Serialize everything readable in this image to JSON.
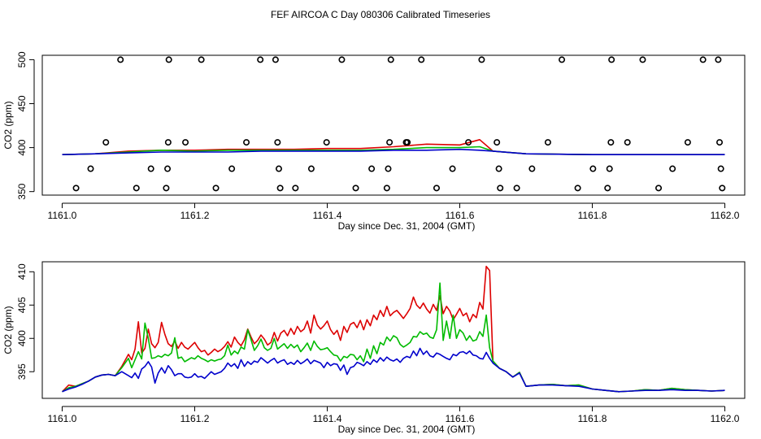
{
  "figure": {
    "title": "FEF AIRCOA C  Day 080306  Calibrated Timeseries"
  },
  "colors": {
    "red": "#dd0000",
    "green": "#00bb00",
    "blue": "#0000cc",
    "axis": "#000000"
  },
  "chart_data": [
    {
      "type": "line+scatter",
      "title": "",
      "xlabel": "Day since Dec. 31, 2004 (GMT)",
      "ylabel": "CO2 (ppm)",
      "xlim": [
        1160.97,
        1162.03
      ],
      "ylim": [
        346,
        505
      ],
      "xticks": [
        1161.0,
        1161.2,
        1161.4,
        1161.6,
        1161.8,
        1162.0
      ],
      "xtick_labels": [
        "1161.0",
        "1161.2",
        "1161.4",
        "1161.6",
        "1161.8",
        "1162.0"
      ],
      "yticks": [
        350,
        400,
        450,
        500
      ],
      "ytick_labels": [
        "350",
        "400",
        "450",
        "500"
      ],
      "scatter": {
        "name": "calibration points",
        "x": [
          1161.021,
          1161.043,
          1161.066,
          1161.088,
          1161.112,
          1161.134,
          1161.157,
          1161.159,
          1161.16,
          1161.161,
          1161.186,
          1161.21,
          1161.232,
          1161.256,
          1161.278,
          1161.299,
          1161.322,
          1161.325,
          1161.327,
          1161.329,
          1161.352,
          1161.376,
          1161.399,
          1161.422,
          1161.443,
          1161.467,
          1161.49,
          1161.492,
          1161.494,
          1161.496,
          1161.519,
          1161.521,
          1161.542,
          1161.565,
          1161.589,
          1161.613,
          1161.633,
          1161.656,
          1161.659,
          1161.661,
          1161.686,
          1161.709,
          1161.733,
          1161.754,
          1161.778,
          1161.801,
          1161.823,
          1161.826,
          1161.828,
          1161.829,
          1161.853,
          1161.876,
          1161.9,
          1161.921,
          1161.944,
          1161.967,
          1161.99,
          1161.992,
          1161.994,
          1161.996
        ],
        "y": [
          354,
          376,
          406,
          500,
          354,
          376,
          354,
          376,
          406,
          500,
          406,
          500,
          354,
          376,
          406,
          500,
          500,
          406,
          376,
          354,
          354,
          376,
          406,
          500,
          354,
          376,
          354,
          376,
          406,
          500,
          406,
          406,
          500,
          354,
          376,
          406,
          500,
          406,
          376,
          354,
          354,
          376,
          406,
          500,
          354,
          376,
          354,
          376,
          406,
          500,
          406,
          500,
          354,
          376,
          406,
          500,
          500,
          406,
          376,
          354
        ]
      },
      "x": [
        1161.0,
        1161.05,
        1161.1,
        1161.15,
        1161.2,
        1161.25,
        1161.3,
        1161.35,
        1161.4,
        1161.45,
        1161.5,
        1161.55,
        1161.6,
        1161.63,
        1161.65,
        1161.7,
        1161.8,
        1161.9,
        1162.0
      ],
      "series": [
        {
          "name": "red",
          "color": "red",
          "values": [
            392,
            393,
            396,
            397,
            397,
            398,
            398,
            398,
            399,
            399,
            401,
            404,
            403,
            409,
            396,
            393,
            392,
            392,
            392
          ]
        },
        {
          "name": "green",
          "color": "green",
          "values": [
            392,
            393,
            395,
            397,
            396,
            397,
            397,
            397,
            397,
            397,
            398,
            400,
            400,
            401,
            396,
            393,
            392,
            392,
            392
          ]
        },
        {
          "name": "blue",
          "color": "blue",
          "values": [
            392,
            393,
            394,
            395,
            395,
            395,
            396,
            396,
            396,
            396,
            397,
            397,
            398,
            397,
            396,
            393,
            392,
            392,
            392
          ]
        }
      ]
    },
    {
      "type": "line",
      "title": "",
      "xlabel": "Day since Dec. 31, 2004 (GMT)",
      "ylabel": "CO2 (ppm)",
      "xlim": [
        1160.97,
        1162.03
      ],
      "ylim": [
        391.0,
        411.5
      ],
      "xticks": [
        1161.0,
        1161.2,
        1161.4,
        1161.6,
        1161.8,
        1162.0
      ],
      "xtick_labels": [
        "1161.0",
        "1161.2",
        "1161.4",
        "1161.6",
        "1161.8",
        "1162.0"
      ],
      "yticks": [
        395,
        400,
        405,
        410
      ],
      "ytick_labels": [
        "395",
        "400",
        "405",
        "410"
      ],
      "x": [
        1161.0,
        1161.01,
        1161.02,
        1161.03,
        1161.04,
        1161.05,
        1161.06,
        1161.07,
        1161.08,
        1161.09,
        1161.1,
        1161.105,
        1161.11,
        1161.115,
        1161.12,
        1161.125,
        1161.13,
        1161.135,
        1161.14,
        1161.145,
        1161.15,
        1161.155,
        1161.16,
        1161.165,
        1161.17,
        1161.175,
        1161.18,
        1161.185,
        1161.19,
        1161.195,
        1161.2,
        1161.205,
        1161.21,
        1161.215,
        1161.22,
        1161.225,
        1161.23,
        1161.235,
        1161.24,
        1161.245,
        1161.25,
        1161.255,
        1161.26,
        1161.265,
        1161.27,
        1161.275,
        1161.28,
        1161.285,
        1161.29,
        1161.295,
        1161.3,
        1161.305,
        1161.31,
        1161.315,
        1161.32,
        1161.325,
        1161.33,
        1161.335,
        1161.34,
        1161.345,
        1161.35,
        1161.355,
        1161.36,
        1161.365,
        1161.37,
        1161.375,
        1161.38,
        1161.385,
        1161.39,
        1161.395,
        1161.4,
        1161.405,
        1161.41,
        1161.415,
        1161.42,
        1161.425,
        1161.43,
        1161.435,
        1161.44,
        1161.445,
        1161.45,
        1161.455,
        1161.46,
        1161.465,
        1161.47,
        1161.475,
        1161.48,
        1161.485,
        1161.49,
        1161.495,
        1161.5,
        1161.505,
        1161.51,
        1161.515,
        1161.52,
        1161.525,
        1161.53,
        1161.535,
        1161.54,
        1161.545,
        1161.55,
        1161.555,
        1161.56,
        1161.565,
        1161.57,
        1161.575,
        1161.58,
        1161.585,
        1161.59,
        1161.595,
        1161.6,
        1161.605,
        1161.61,
        1161.615,
        1161.62,
        1161.625,
        1161.63,
        1161.635,
        1161.64,
        1161.645,
        1161.65,
        1161.66,
        1161.67,
        1161.68,
        1161.69,
        1161.7,
        1161.72,
        1161.74,
        1161.76,
        1161.78,
        1161.8,
        1161.82,
        1161.84,
        1161.86,
        1161.88,
        1161.9,
        1161.92,
        1161.94,
        1161.96,
        1161.98,
        1162.0
      ],
      "series": [
        {
          "name": "red",
          "color": "red",
          "values": [
            392.0,
            393.0,
            392.8,
            393.2,
            393.6,
            394.2,
            394.5,
            394.6,
            394.4,
            395.8,
            397.6,
            396.8,
            398.4,
            402.5,
            397.8,
            398.5,
            401.4,
            399.2,
            398.6,
            399.4,
            402.4,
            400.6,
            399.2,
            398.8,
            399.6,
            398.5,
            399.4,
            398.7,
            398.4,
            398.9,
            399.4,
            398.6,
            398.0,
            398.2,
            397.5,
            397.9,
            398.4,
            398.0,
            398.3,
            398.8,
            399.5,
            398.7,
            400.2,
            399.4,
            398.9,
            399.8,
            401.4,
            400.2,
            399.2,
            399.7,
            400.5,
            399.9,
            399.0,
            399.4,
            400.9,
            399.6,
            400.8,
            401.2,
            400.4,
            401.5,
            400.6,
            401.8,
            401.0,
            401.4,
            402.6,
            400.8,
            403.5,
            402.0,
            401.4,
            401.9,
            402.6,
            401.3,
            400.6,
            401.2,
            399.7,
            401.8,
            400.9,
            402.1,
            402.4,
            401.6,
            402.7,
            401.3,
            402.8,
            401.9,
            403.5,
            402.8,
            404.2,
            403.3,
            404.8,
            403.4,
            403.9,
            404.2,
            403.6,
            403.0,
            403.7,
            404.5,
            406.2,
            405.0,
            404.5,
            405.3,
            404.4,
            403.8,
            405.1,
            404.2,
            406.4,
            403.7,
            404.8,
            404.1,
            402.8,
            403.6,
            404.5,
            403.4,
            403.8,
            402.5,
            403.6,
            403.1,
            405.4,
            404.4,
            410.8,
            410.2,
            396.6,
            395.5,
            395.0,
            394.2,
            394.9,
            392.8,
            393.0,
            393.1,
            392.9,
            393.0,
            392.4,
            392.2,
            392.0,
            392.1,
            392.3,
            392.2,
            392.5,
            392.3,
            392.2,
            392.1,
            392.2
          ]
        },
        {
          "name": "green",
          "color": "green",
          "values": [
            392.0,
            392.6,
            392.8,
            393.2,
            393.6,
            394.2,
            394.5,
            394.6,
            394.4,
            395.6,
            397.0,
            395.6,
            396.8,
            398.0,
            396.9,
            402.3,
            400.0,
            397.0,
            397.1,
            397.4,
            397.2,
            397.6,
            397.4,
            397.8,
            400.1,
            397.0,
            397.2,
            396.5,
            396.8,
            397.1,
            396.9,
            397.4,
            397.0,
            396.8,
            396.5,
            396.8,
            396.6,
            396.8,
            396.9,
            397.4,
            399.0,
            397.5,
            398.1,
            397.7,
            398.7,
            398.4,
            401.3,
            399.8,
            398.2,
            398.9,
            399.9,
            398.6,
            398.2,
            398.5,
            400.0,
            398.4,
            398.8,
            399.2,
            398.5,
            399.1,
            398.6,
            399.0,
            398.0,
            398.6,
            399.3,
            398.2,
            399.6,
            398.8,
            398.3,
            398.4,
            398.6,
            398.0,
            397.5,
            397.4,
            396.6,
            397.3,
            397.1,
            397.6,
            397.5,
            396.8,
            397.4,
            396.5,
            398.4,
            397.0,
            398.9,
            397.7,
            399.4,
            399.0,
            400.2,
            399.6,
            400.4,
            400.1,
            399.1,
            398.7,
            399.0,
            399.4,
            400.3,
            400.2,
            401.0,
            400.6,
            400.8,
            400.2,
            400.0,
            401.3,
            408.3,
            399.7,
            402.6,
            400.0,
            403.5,
            400.0,
            401.3,
            400.8,
            399.7,
            400.4,
            399.6,
            399.8,
            401.0,
            400.3,
            403.5,
            398.6,
            396.6,
            395.5,
            395.0,
            394.2,
            394.9,
            392.8,
            393.0,
            393.1,
            392.9,
            393.0,
            392.4,
            392.2,
            392.0,
            392.1,
            392.3,
            392.2,
            392.5,
            392.3,
            392.2,
            392.1,
            392.2
          ]
        },
        {
          "name": "blue",
          "color": "blue",
          "values": [
            392.0,
            392.4,
            392.7,
            393.1,
            393.6,
            394.2,
            394.5,
            394.6,
            394.4,
            395.0,
            394.4,
            394.1,
            394.8,
            394.0,
            395.4,
            395.8,
            396.5,
            395.7,
            393.3,
            394.8,
            395.6,
            394.8,
            395.9,
            395.3,
            394.4,
            394.7,
            394.7,
            394.2,
            394.1,
            394.2,
            394.7,
            394.2,
            394.3,
            394.0,
            394.5,
            395.0,
            394.6,
            394.8,
            395.0,
            395.5,
            396.3,
            395.8,
            396.2,
            395.5,
            396.8,
            395.8,
            396.5,
            396.1,
            396.6,
            396.4,
            397.1,
            396.7,
            396.3,
            396.7,
            397.0,
            396.3,
            396.6,
            396.8,
            396.1,
            396.4,
            396.1,
            396.7,
            396.2,
            396.5,
            396.9,
            396.2,
            396.7,
            396.5,
            396.3,
            395.6,
            396.4,
            395.9,
            396.2,
            396.1,
            395.2,
            396.0,
            394.6,
            395.6,
            395.8,
            396.4,
            396.2,
            395.9,
            396.5,
            396.1,
            396.8,
            396.4,
            397.1,
            396.6,
            397.2,
            396.8,
            396.6,
            396.9,
            396.4,
            397.0,
            397.3,
            397.1,
            398.1,
            397.4,
            398.5,
            397.6,
            398.1,
            397.4,
            397.2,
            397.8,
            397.6,
            397.3,
            397.0,
            396.8,
            397.6,
            397.4,
            397.9,
            398.0,
            397.7,
            398.1,
            397.5,
            397.4,
            397.0,
            396.9,
            397.9,
            397.0,
            396.3,
            395.5,
            395.0,
            394.2,
            394.8,
            392.8,
            393.0,
            393.0,
            392.9,
            392.8,
            392.4,
            392.2,
            392.0,
            392.1,
            392.2,
            392.2,
            392.3,
            392.2,
            392.2,
            392.1,
            392.2
          ]
        }
      ]
    }
  ]
}
